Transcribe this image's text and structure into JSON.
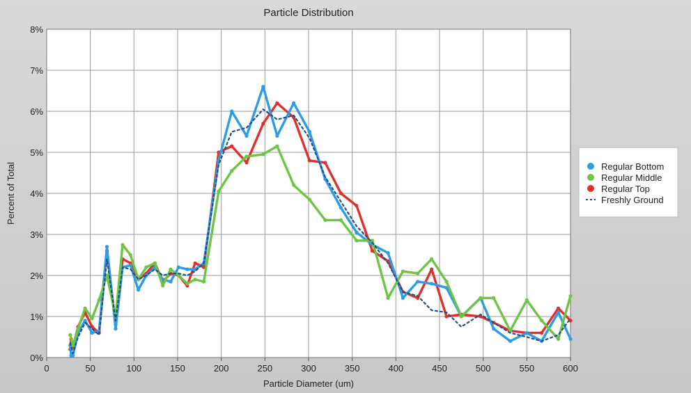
{
  "chart_data": {
    "type": "line",
    "title": "Particle Distribution",
    "xlabel": "Particle Diameter (um)",
    "ylabel": "Percent of Total",
    "xlim": [
      0,
      600
    ],
    "ylim": [
      0,
      8
    ],
    "x_ticks": [
      0,
      50,
      100,
      150,
      200,
      250,
      300,
      350,
      400,
      450,
      500,
      550,
      600
    ],
    "y_ticks": [
      0,
      1,
      2,
      3,
      4,
      5,
      6,
      7,
      8
    ],
    "x_tick_labels": [
      "0",
      "50",
      "100",
      "150",
      "200",
      "250",
      "300",
      "350",
      "400",
      "450",
      "500",
      "550",
      "600"
    ],
    "y_tick_labels": [
      "0%",
      "1%",
      "2%",
      "3%",
      "4%",
      "5%",
      "6%",
      "7%",
      "8%"
    ],
    "grid": true,
    "legend_position": "right",
    "series": [
      {
        "name": "Regular Bottom",
        "color": "#2e9be6",
        "style": "solid",
        "points": [
          [
            27,
            0.3
          ],
          [
            28,
            0.05
          ],
          [
            30,
            0.05
          ],
          [
            36,
            0.6
          ],
          [
            44,
            0.9
          ],
          [
            52,
            0.6
          ],
          [
            60,
            0.65
          ],
          [
            69,
            2.7
          ],
          [
            79,
            0.7
          ],
          [
            87,
            2.2
          ],
          [
            96,
            2.25
          ],
          [
            105,
            1.65
          ],
          [
            114,
            2.0
          ],
          [
            124,
            2.2
          ],
          [
            133,
            1.9
          ],
          [
            142,
            1.85
          ],
          [
            151,
            2.2
          ],
          [
            161,
            2.15
          ],
          [
            170,
            2.15
          ],
          [
            180,
            2.3
          ],
          [
            197,
            4.8
          ],
          [
            212,
            6.0
          ],
          [
            229,
            5.4
          ],
          [
            248,
            6.6
          ],
          [
            264,
            5.4
          ],
          [
            283,
            6.2
          ],
          [
            301,
            5.5
          ],
          [
            319,
            4.35
          ],
          [
            337,
            3.65
          ],
          [
            355,
            3.05
          ],
          [
            373,
            2.75
          ],
          [
            391,
            2.55
          ],
          [
            408,
            1.45
          ],
          [
            425,
            1.85
          ],
          [
            441,
            1.8
          ],
          [
            458,
            1.7
          ],
          [
            475,
            1.0
          ],
          [
            497,
            1.45
          ],
          [
            512,
            0.7
          ],
          [
            531,
            0.4
          ],
          [
            550,
            0.6
          ],
          [
            567,
            0.4
          ],
          [
            586,
            1.1
          ],
          [
            600,
            0.45
          ]
        ]
      },
      {
        "name": "Regular Middle",
        "color": "#6cc644",
        "style": "solid",
        "points": [
          [
            27,
            0.55
          ],
          [
            30,
            0.3
          ],
          [
            36,
            0.7
          ],
          [
            44,
            1.2
          ],
          [
            52,
            0.95
          ],
          [
            60,
            1.4
          ],
          [
            69,
            2.0
          ],
          [
            79,
            1.0
          ],
          [
            87,
            2.75
          ],
          [
            96,
            2.5
          ],
          [
            105,
            1.9
          ],
          [
            114,
            2.2
          ],
          [
            124,
            2.3
          ],
          [
            133,
            1.75
          ],
          [
            142,
            2.15
          ],
          [
            151,
            2.0
          ],
          [
            161,
            1.8
          ],
          [
            170,
            1.9
          ],
          [
            180,
            1.85
          ],
          [
            197,
            4.05
          ],
          [
            212,
            4.55
          ],
          [
            229,
            4.9
          ],
          [
            248,
            4.95
          ],
          [
            264,
            5.15
          ],
          [
            283,
            4.2
          ],
          [
            301,
            3.85
          ],
          [
            319,
            3.35
          ],
          [
            337,
            3.35
          ],
          [
            355,
            2.85
          ],
          [
            373,
            2.85
          ],
          [
            391,
            1.45
          ],
          [
            408,
            2.1
          ],
          [
            425,
            2.05
          ],
          [
            441,
            2.4
          ],
          [
            458,
            1.85
          ],
          [
            475,
            1.0
          ],
          [
            497,
            1.45
          ],
          [
            512,
            1.45
          ],
          [
            531,
            0.65
          ],
          [
            550,
            1.4
          ],
          [
            567,
            0.9
          ],
          [
            586,
            0.45
          ],
          [
            600,
            1.5
          ]
        ]
      },
      {
        "name": "Regular Top",
        "color": "#e0302a",
        "style": "solid",
        "points": [
          [
            27,
            0.2
          ],
          [
            28,
            0.45
          ],
          [
            30,
            0.25
          ],
          [
            36,
            0.75
          ],
          [
            44,
            1.1
          ],
          [
            52,
            0.75
          ],
          [
            60,
            0.6
          ],
          [
            69,
            2.6
          ],
          [
            79,
            0.8
          ],
          [
            87,
            2.4
          ],
          [
            96,
            2.3
          ],
          [
            105,
            1.9
          ],
          [
            114,
            2.05
          ],
          [
            124,
            2.3
          ],
          [
            133,
            1.85
          ],
          [
            142,
            2.05
          ],
          [
            151,
            2.0
          ],
          [
            161,
            1.75
          ],
          [
            170,
            2.3
          ],
          [
            180,
            2.2
          ],
          [
            197,
            5.0
          ],
          [
            212,
            5.15
          ],
          [
            229,
            4.75
          ],
          [
            248,
            5.7
          ],
          [
            264,
            6.2
          ],
          [
            283,
            5.85
          ],
          [
            301,
            4.8
          ],
          [
            319,
            4.75
          ],
          [
            337,
            4.0
          ],
          [
            355,
            3.7
          ],
          [
            373,
            2.6
          ],
          [
            391,
            2.35
          ],
          [
            408,
            1.6
          ],
          [
            425,
            1.45
          ],
          [
            441,
            2.15
          ],
          [
            458,
            1.0
          ],
          [
            475,
            1.05
          ],
          [
            497,
            1.0
          ],
          [
            512,
            0.85
          ],
          [
            531,
            0.65
          ],
          [
            550,
            0.6
          ],
          [
            567,
            0.6
          ],
          [
            586,
            1.2
          ],
          [
            600,
            0.9
          ]
        ]
      },
      {
        "name": "Freshly Ground",
        "color": "#1f4f8a",
        "style": "dotted",
        "points": [
          [
            27,
            0.35
          ],
          [
            30,
            0.1
          ],
          [
            36,
            0.5
          ],
          [
            44,
            0.85
          ],
          [
            52,
            0.7
          ],
          [
            60,
            0.55
          ],
          [
            69,
            2.4
          ],
          [
            79,
            0.9
          ],
          [
            87,
            2.2
          ],
          [
            96,
            2.15
          ],
          [
            105,
            1.9
          ],
          [
            114,
            2.0
          ],
          [
            124,
            2.15
          ],
          [
            133,
            2.0
          ],
          [
            142,
            2.05
          ],
          [
            151,
            2.05
          ],
          [
            161,
            2.0
          ],
          [
            170,
            2.1
          ],
          [
            180,
            2.3
          ],
          [
            197,
            4.7
          ],
          [
            212,
            5.5
          ],
          [
            229,
            5.6
          ],
          [
            248,
            6.05
          ],
          [
            264,
            5.8
          ],
          [
            283,
            5.9
          ],
          [
            301,
            5.35
          ],
          [
            319,
            4.4
          ],
          [
            337,
            3.8
          ],
          [
            355,
            3.2
          ],
          [
            373,
            2.8
          ],
          [
            391,
            2.3
          ],
          [
            408,
            1.6
          ],
          [
            425,
            1.5
          ],
          [
            441,
            1.15
          ],
          [
            458,
            1.1
          ],
          [
            475,
            0.75
          ],
          [
            497,
            1.05
          ],
          [
            512,
            0.85
          ],
          [
            531,
            0.6
          ],
          [
            550,
            0.5
          ],
          [
            567,
            0.4
          ],
          [
            586,
            0.55
          ],
          [
            600,
            0.95
          ]
        ]
      }
    ]
  }
}
